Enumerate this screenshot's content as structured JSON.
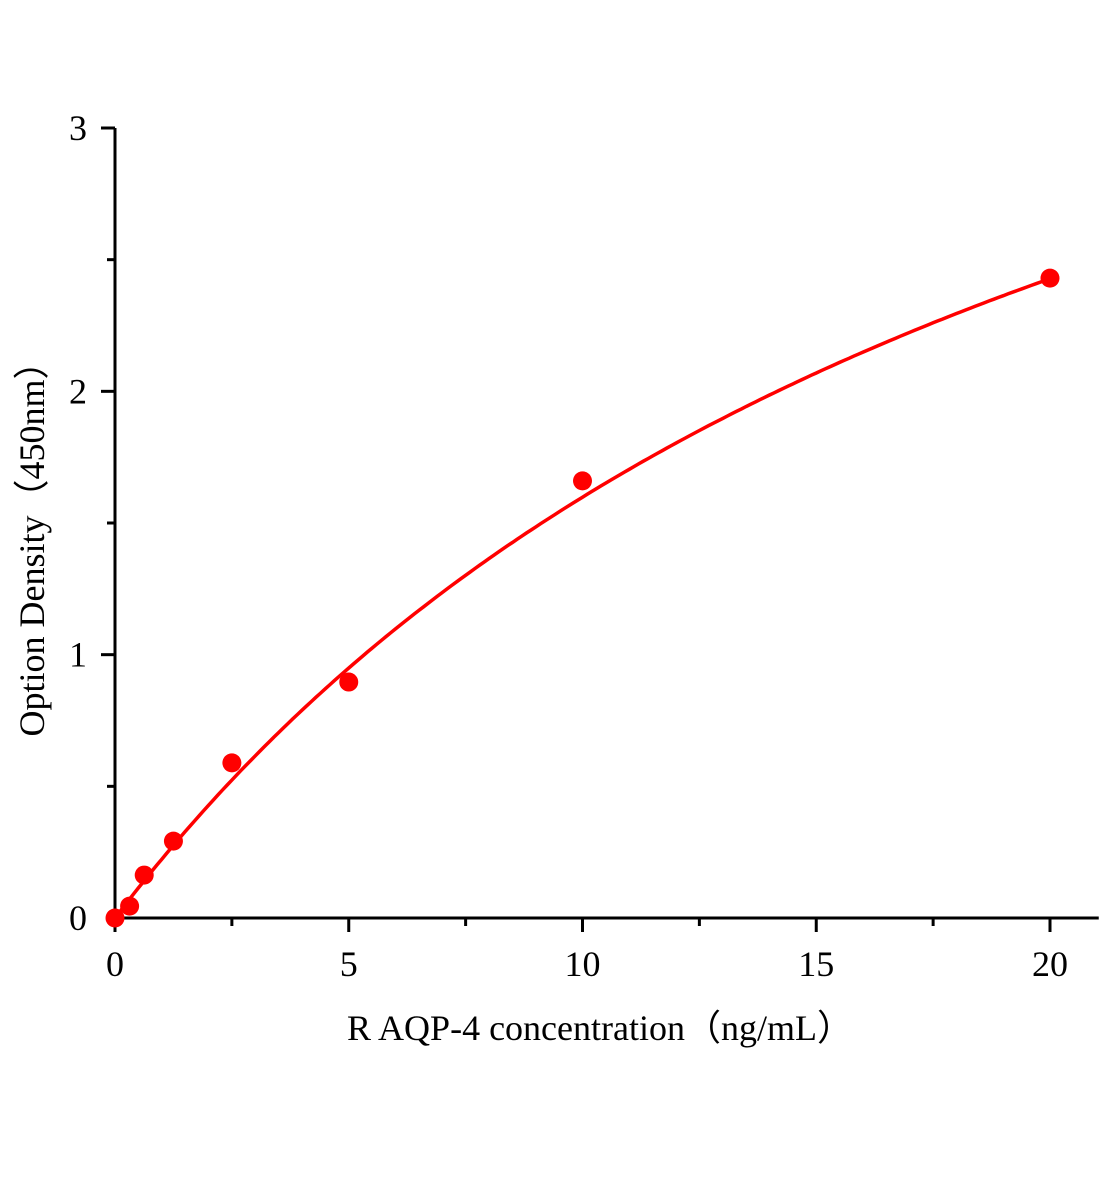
{
  "chart_data": {
    "type": "scatter",
    "title": "",
    "xlabel": "R AQP-4 concentration（ng/mL）",
    "ylabel": "Option Density（450nm）",
    "xlim": [
      0,
      21
    ],
    "ylim": [
      0,
      3
    ],
    "x_ticks": [
      "0",
      "5",
      "10",
      "15",
      "20"
    ],
    "y_ticks": [
      "0",
      "1",
      "2",
      "3"
    ],
    "grid": false,
    "legend": "none",
    "series": [
      {
        "x": [
          0,
          0.3125,
          0.625,
          1.25,
          2.5,
          5,
          10,
          20
        ],
        "y": [
          0,
          0.045,
          0.163,
          0.292,
          0.589,
          0.896,
          1.66,
          2.43
        ],
        "marker": "circle",
        "color": "#ff0000",
        "fit_line": true
      }
    ]
  }
}
